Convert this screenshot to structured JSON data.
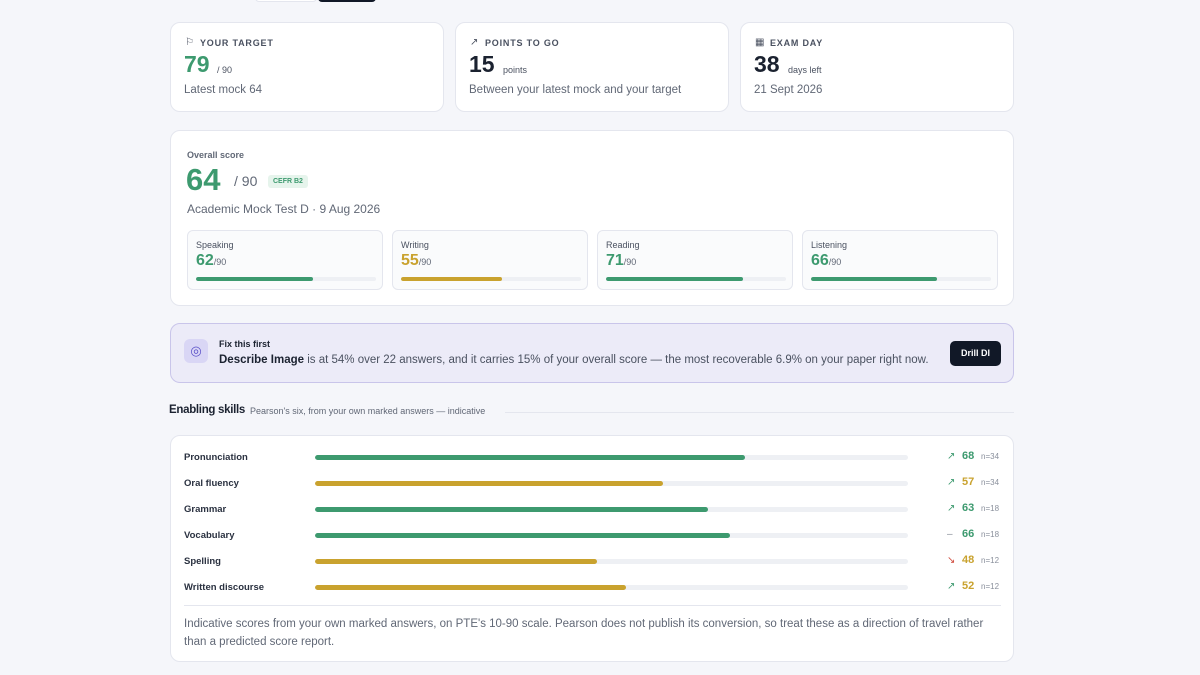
{
  "cards": [
    {
      "icon": "⚐",
      "label": "YOUR TARGET",
      "value": 79,
      "unit": "/ 90",
      "note": "Latest mock 64"
    },
    {
      "icon": "↗",
      "label": "POINTS TO GO",
      "value": 15,
      "unit": "points",
      "note": "Between your latest mock and your target"
    },
    {
      "icon": "▦",
      "label": "EXAM DAY",
      "value": 38,
      "unit": "days left",
      "note": "21 Sept 2026"
    }
  ],
  "overall": {
    "label": "Overall score",
    "value": 64,
    "unit": "/ 90",
    "badge": "CEFR B2",
    "test": "Academic Mock Test D · 9 Aug 2026",
    "xlim": [
      10,
      90
    ],
    "subscores": [
      {
        "name": "Speaking",
        "value": 62,
        "unit": "/90",
        "color": "#3d9a6f"
      },
      {
        "name": "Writing",
        "value": 55,
        "unit": "/90",
        "color": "#c9a22e"
      },
      {
        "name": "Reading",
        "value": 71,
        "unit": "/90",
        "color": "#3d9a6f"
      },
      {
        "name": "Listening",
        "value": 66,
        "unit": "/90",
        "color": "#3d9a6f"
      }
    ]
  },
  "fix": {
    "title": "Fix this first",
    "highlight": "Describe Image",
    "message": " is at 54% over 22 answers, and it carries 15% of your overall score — the most recoverable 6.9% on your paper right now.",
    "button": "Drill DI"
  },
  "skills": {
    "title": "Enabling skills",
    "subtitle": "Pearson's six, from your own marked answers — indicative",
    "xlim": [
      10,
      90
    ],
    "rows": [
      {
        "name": "Pronunciation",
        "value": 68,
        "trend": "↗",
        "n": "n=34",
        "color": "#3d9a6f"
      },
      {
        "name": "Oral fluency",
        "value": 57,
        "trend": "↗",
        "n": "n=34",
        "color": "#c9a22e"
      },
      {
        "name": "Grammar",
        "value": 63,
        "trend": "↗",
        "n": "n=18",
        "color": "#3d9a6f"
      },
      {
        "name": "Vocabulary",
        "value": 66,
        "trend": "–",
        "n": "n=18",
        "color": "#3d9a6f"
      },
      {
        "name": "Spelling",
        "value": 48,
        "trend": "↘",
        "n": "n=12",
        "color": "#c9a22e"
      },
      {
        "name": "Written discourse",
        "value": 52,
        "trend": "↗",
        "n": "n=12",
        "color": "#c9a22e"
      }
    ],
    "note": "Indicative scores from your own marked answers, on PTE's 10-90 scale. Pearson does not publish its conversion, so treat these as a direction of travel rather than a predicted score report."
  }
}
